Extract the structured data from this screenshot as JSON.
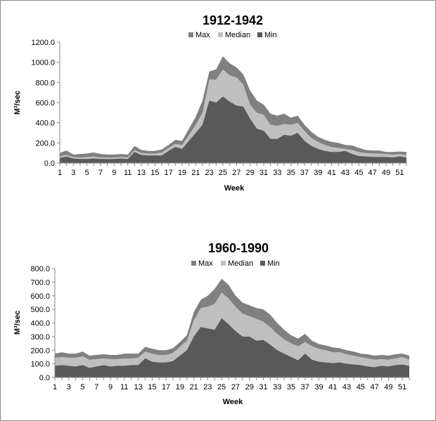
{
  "colors": {
    "max": "#808080",
    "median": "#bfbfbf",
    "min": "#595959",
    "axis": "#868686"
  },
  "chart_data": [
    {
      "type": "area",
      "title": "1912-1942",
      "xlabel": "Week",
      "ylabel": "M³/sec",
      "ylim": [
        0,
        1200
      ],
      "yticks": [
        "0.0",
        "200.0",
        "400.0",
        "600.0",
        "800.0",
        "1000.0",
        "1200.0"
      ],
      "x": [
        1,
        2,
        3,
        4,
        5,
        6,
        7,
        8,
        9,
        10,
        11,
        12,
        13,
        14,
        15,
        16,
        17,
        18,
        19,
        20,
        21,
        22,
        23,
        24,
        25,
        26,
        27,
        28,
        29,
        30,
        31,
        32,
        33,
        34,
        35,
        36,
        37,
        38,
        39,
        40,
        41,
        42,
        43,
        44,
        45,
        46,
        47,
        48,
        49,
        50,
        51,
        52
      ],
      "xticks": [
        "1",
        "3",
        "5",
        "7",
        "9",
        "11",
        "13",
        "15",
        "17",
        "19",
        "21",
        "23",
        "25",
        "27",
        "29",
        "31",
        "33",
        "35",
        "37",
        "39",
        "41",
        "43",
        "45",
        "47",
        "49",
        "51"
      ],
      "legend": {
        "position": "top",
        "entries": [
          "Max",
          "Median",
          "Min"
        ]
      },
      "series": [
        {
          "name": "Max",
          "values": [
            100,
            125,
            85,
            90,
            95,
            105,
            90,
            85,
            85,
            90,
            85,
            170,
            130,
            120,
            120,
            135,
            180,
            230,
            220,
            340,
            460,
            620,
            910,
            930,
            1060,
            990,
            950,
            880,
            720,
            620,
            580,
            490,
            470,
            490,
            450,
            470,
            380,
            310,
            260,
            230,
            210,
            200,
            180,
            175,
            150,
            130,
            125,
            125,
            110,
            110,
            115,
            110
          ]
        },
        {
          "name": "Median",
          "values": [
            70,
            80,
            60,
            55,
            60,
            65,
            55,
            55,
            55,
            60,
            55,
            130,
            100,
            95,
            95,
            105,
            150,
            190,
            180,
            280,
            380,
            500,
            830,
            830,
            930,
            870,
            850,
            780,
            580,
            500,
            480,
            380,
            370,
            390,
            380,
            400,
            320,
            250,
            210,
            180,
            160,
            150,
            140,
            130,
            110,
            100,
            95,
            95,
            90,
            85,
            90,
            80
          ]
        },
        {
          "name": "Min",
          "values": [
            50,
            65,
            45,
            40,
            40,
            45,
            40,
            40,
            40,
            45,
            40,
            110,
            80,
            75,
            75,
            75,
            120,
            160,
            140,
            220,
            300,
            380,
            620,
            600,
            660,
            610,
            570,
            560,
            440,
            340,
            320,
            240,
            240,
            280,
            270,
            300,
            220,
            170,
            140,
            120,
            110,
            110,
            120,
            90,
            70,
            65,
            60,
            60,
            60,
            55,
            65,
            55
          ]
        }
      ]
    },
    {
      "type": "area",
      "title": "1960-1990",
      "xlabel": "Week",
      "ylabel": "M³/sec",
      "ylim": [
        0,
        800
      ],
      "yticks": [
        "0.0",
        "100.0",
        "200.0",
        "300.0",
        "400.0",
        "500.0",
        "600.0",
        "700.0",
        "800.0"
      ],
      "x": [
        1,
        2,
        3,
        4,
        5,
        6,
        7,
        8,
        9,
        10,
        11,
        12,
        13,
        14,
        15,
        16,
        17,
        18,
        19,
        20,
        21,
        22,
        23,
        24,
        25,
        26,
        27,
        28,
        29,
        30,
        31,
        32,
        33,
        34,
        35,
        36,
        37,
        38,
        39,
        40,
        41,
        42,
        43,
        44,
        45,
        46,
        47,
        48,
        49,
        50,
        51,
        52
      ],
      "xticks": [
        "1",
        "3",
        "5",
        "7",
        "9",
        "11",
        "13",
        "15",
        "17",
        "19",
        "21",
        "23",
        "25",
        "27",
        "29",
        "31",
        "33",
        "35",
        "37",
        "39",
        "41",
        "43",
        "45",
        "47",
        "49",
        "51"
      ],
      "legend": {
        "position": "top",
        "entries": [
          "Max",
          "Median",
          "Min"
        ]
      },
      "series": [
        {
          "name": "Max",
          "values": [
            175,
            185,
            175,
            175,
            190,
            160,
            165,
            170,
            165,
            165,
            175,
            175,
            175,
            225,
            210,
            200,
            200,
            215,
            260,
            310,
            480,
            570,
            600,
            650,
            725,
            680,
            600,
            550,
            530,
            510,
            500,
            460,
            400,
            350,
            310,
            285,
            320,
            270,
            245,
            235,
            220,
            215,
            200,
            190,
            175,
            170,
            160,
            165,
            160,
            170,
            175,
            160
          ]
        },
        {
          "name": "Median",
          "values": [
            145,
            150,
            145,
            145,
            155,
            130,
            135,
            140,
            135,
            135,
            140,
            140,
            145,
            190,
            175,
            165,
            165,
            180,
            225,
            270,
            420,
            510,
            520,
            540,
            625,
            580,
            520,
            470,
            450,
            430,
            410,
            370,
            320,
            280,
            250,
            230,
            260,
            230,
            210,
            200,
            185,
            185,
            170,
            160,
            150,
            140,
            130,
            135,
            130,
            140,
            150,
            130
          ]
        },
        {
          "name": "Min",
          "values": [
            85,
            90,
            85,
            80,
            90,
            70,
            80,
            90,
            80,
            85,
            85,
            90,
            90,
            140,
            115,
            110,
            110,
            120,
            160,
            200,
            300,
            370,
            360,
            350,
            435,
            390,
            340,
            300,
            300,
            270,
            275,
            240,
            200,
            175,
            150,
            125,
            175,
            130,
            115,
            110,
            105,
            110,
            100,
            95,
            90,
            80,
            75,
            85,
            80,
            90,
            95,
            85
          ]
        }
      ]
    }
  ]
}
